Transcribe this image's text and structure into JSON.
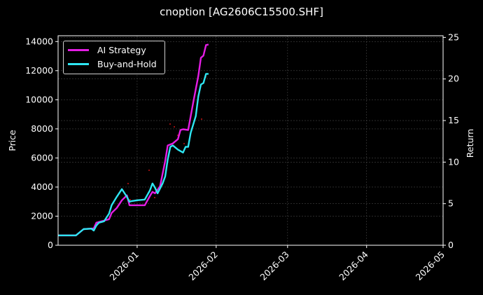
{
  "title": "cnoption [AG2606C15500.SHF]",
  "colors": {
    "ai_strategy": "#e41de4",
    "buy_and_hold": "#2ee6f2",
    "background": "#000000",
    "grid": "#444444",
    "axis": "#ffffff",
    "signals": "#ff1a1a"
  },
  "legend": {
    "items": [
      {
        "label": "AI Strategy",
        "color": "#e41de4"
      },
      {
        "label": "Buy-and-Hold",
        "color": "#2ee6f2"
      }
    ]
  },
  "chart_data": {
    "type": "line",
    "title": "cnoption [AG2606C15500.SHF]",
    "xlabel": "",
    "ylabel": "Price",
    "ylabel_right": "Return",
    "ylim": [
      0,
      14400
    ],
    "ylim_right": [
      0,
      25.2
    ],
    "xlim": [
      "2025-12-01",
      "2026-05-01"
    ],
    "x_ticks": [
      "2026-01",
      "2026-02",
      "2026-03",
      "2026-04",
      "2026-05"
    ],
    "y_ticks": [
      0,
      2000,
      4000,
      6000,
      8000,
      10000,
      12000,
      14000
    ],
    "y_ticks_right": [
      0,
      5,
      10,
      15,
      20,
      25
    ],
    "grid": true,
    "legend_position": "upper left",
    "series": [
      {
        "name": "AI Strategy",
        "x": [
          "2025-12-01",
          "2025-12-08",
          "2025-12-11",
          "2025-12-15",
          "2025-12-16",
          "2025-12-17",
          "2025-12-19",
          "2025-12-21",
          "2025-12-22",
          "2025-12-24",
          "2025-12-26",
          "2025-12-28",
          "2025-12-29",
          "2025-12-30",
          "2026-01-04",
          "2026-01-06",
          "2026-01-07",
          "2026-01-08",
          "2026-01-10",
          "2026-01-12",
          "2026-01-13",
          "2026-01-15",
          "2026-01-17",
          "2026-01-18",
          "2026-01-19",
          "2026-01-21",
          "2026-01-23",
          "2026-01-25",
          "2026-01-26",
          "2026-01-27",
          "2026-01-28",
          "2026-01-29"
        ],
        "values": [
          680,
          680,
          1110,
          1160,
          1550,
          1600,
          1690,
          1790,
          2220,
          2560,
          3090,
          3430,
          2750,
          2750,
          2750,
          3380,
          3670,
          3570,
          4060,
          5790,
          6860,
          7000,
          7290,
          7920,
          7970,
          7920,
          9800,
          11630,
          12890,
          13030,
          13760,
          13800
        ]
      },
      {
        "name": "Buy-and-Hold",
        "x": [
          "2025-12-01",
          "2025-12-08",
          "2025-12-11",
          "2025-12-14",
          "2025-12-15",
          "2025-12-16",
          "2025-12-17",
          "2025-12-19",
          "2025-12-21",
          "2025-12-22",
          "2025-12-24",
          "2025-12-26",
          "2025-12-28",
          "2025-12-29",
          "2025-12-30",
          "2026-01-01",
          "2026-01-04",
          "2026-01-06",
          "2026-01-07",
          "2026-01-08",
          "2026-01-09",
          "2026-01-11",
          "2026-01-12",
          "2026-01-13",
          "2026-01-14",
          "2026-01-15",
          "2026-01-17",
          "2026-01-19",
          "2026-01-20",
          "2026-01-21",
          "2026-01-22",
          "2026-01-24",
          "2026-01-25",
          "2026-01-26",
          "2026-01-27",
          "2026-01-28",
          "2026-01-29"
        ],
        "values": [
          680,
          680,
          1110,
          1140,
          1010,
          1350,
          1550,
          1640,
          2170,
          2750,
          3330,
          3860,
          3330,
          2990,
          3040,
          3090,
          3140,
          3760,
          4250,
          3960,
          3570,
          4250,
          4730,
          5890,
          6760,
          6860,
          6570,
          6370,
          6760,
          6760,
          7720,
          8880,
          10230,
          11050,
          11150,
          11780,
          11780
        ]
      }
    ],
    "return_mapping": "return = price / ~548 (right axis 0-25 aligned with left 0-13700)"
  },
  "axes": {
    "left_label": "Price",
    "right_label": "Return"
  }
}
